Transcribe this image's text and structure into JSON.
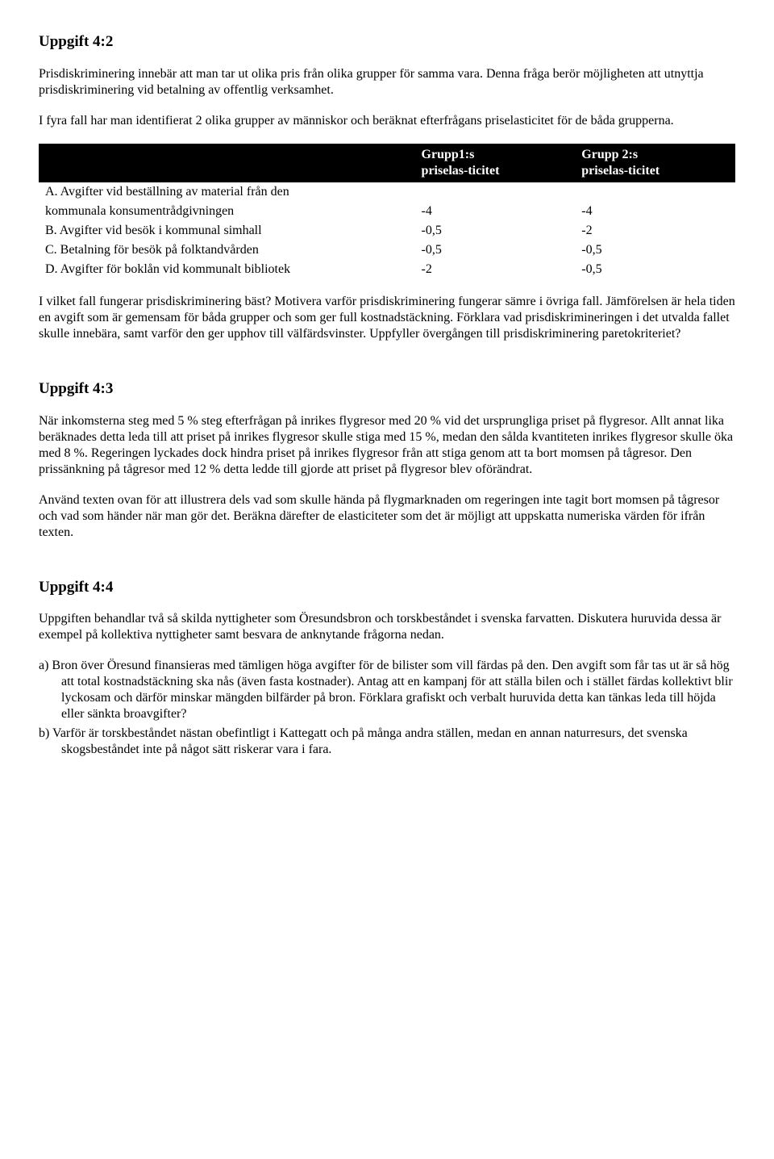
{
  "task42": {
    "heading": "Uppgift 4:2",
    "para1": "Prisdiskriminering innebär att man tar ut olika pris från olika grupper för samma vara. Denna fråga berör möjligheten att utnyttja prisdiskriminering vid betalning av offentlig verksamhet.",
    "para2": "I fyra fall har man identifierat 2 olika grupper av människor och beräknat efterfrågans priselasticitet för de båda grupperna.",
    "table": {
      "header_col1": "",
      "header_col2_line1": "Grupp1:s",
      "header_col2_line2": "priselas-ticitet",
      "header_col3_line1": "Grupp 2:s",
      "header_col3_line2": "priselas-ticitet",
      "rows": [
        {
          "label_line1": "A. Avgifter vid beställning av material från den",
          "label_line2": "kommunala konsumentrådgivningen",
          "g1": "-4",
          "g2": "-4"
        },
        {
          "label_line1": "B. Avgifter vid besök i kommunal simhall",
          "label_line2": "",
          "g1": "-0,5",
          "g2": "-2"
        },
        {
          "label_line1": "C. Betalning för besök på folktandvården",
          "label_line2": "",
          "g1": "-0,5",
          "g2": "-0,5"
        },
        {
          "label_line1": "D. Avgifter för boklån vid kommunalt bibliotek",
          "label_line2": "",
          "g1": "-2",
          "g2": "-0,5"
        }
      ]
    },
    "para3": "I vilket fall fungerar prisdiskriminering bäst? Motivera varför prisdiskriminering fungerar sämre i övriga fall. Jämförelsen är hela tiden en avgift som är gemensam för båda grupper och som ger full kostnadstäckning. Förklara vad prisdiskrimineringen i det utvalda fallet skulle innebära, samt varför den ger upphov till välfärdsvinster. Uppfyller övergången till prisdiskriminering paretokriteriet?"
  },
  "task43": {
    "heading": "Uppgift 4:3",
    "para1": "När inkomsterna steg med 5 % steg efterfrågan på inrikes flygresor med 20 % vid det ursprungliga priset på flygresor. Allt annat lika beräknades detta leda till att priset på inrikes flygresor skulle stiga med 15 %, medan den sålda kvantiteten inrikes flygresor skulle öka med 8 %. Regeringen lyckades dock hindra priset på inrikes flygresor från att stiga genom att ta bort momsen på tågresor. Den prissänkning på tågresor med 12 % detta ledde till gjorde att priset på flygresor blev oförändrat.",
    "para2": "Använd texten ovan för att illustrera dels vad som skulle hända på flygmarknaden om regeringen inte tagit bort momsen på tågresor och vad som händer när man gör det. Beräkna därefter de elasticiteter som det är möjligt att uppskatta numeriska värden för ifrån texten."
  },
  "task44": {
    "heading": "Uppgift 4:4",
    "para1": "Uppgiften behandlar två så skilda nyttigheter som Öresundsbron och torskbeståndet i svenska farvatten. Diskutera huruvida dessa är exempel på kollektiva nyttigheter samt besvara de anknytande frågorna nedan.",
    "item_a": "a)   Bron över Öresund finansieras med tämligen höga avgifter för de bilister som vill färdas på den. Den avgift som får tas ut är så hög att total kostnadstäckning ska nås (även fasta kostnader). Antag att en kampanj för att ställa bilen och i stället färdas kollektivt blir lyckosam och därför minskar mängden bilfärder på bron. Förklara grafiskt och verbalt huruvida detta kan tänkas leda till höjda eller sänkta broavgifter?",
    "item_b": "b)   Varför är torskbeståndet nästan obefintligt i Kattegatt och på många andra ställen, medan en annan naturresurs, det svenska skogsbeståndet inte på något sätt riskerar vara i fara."
  }
}
